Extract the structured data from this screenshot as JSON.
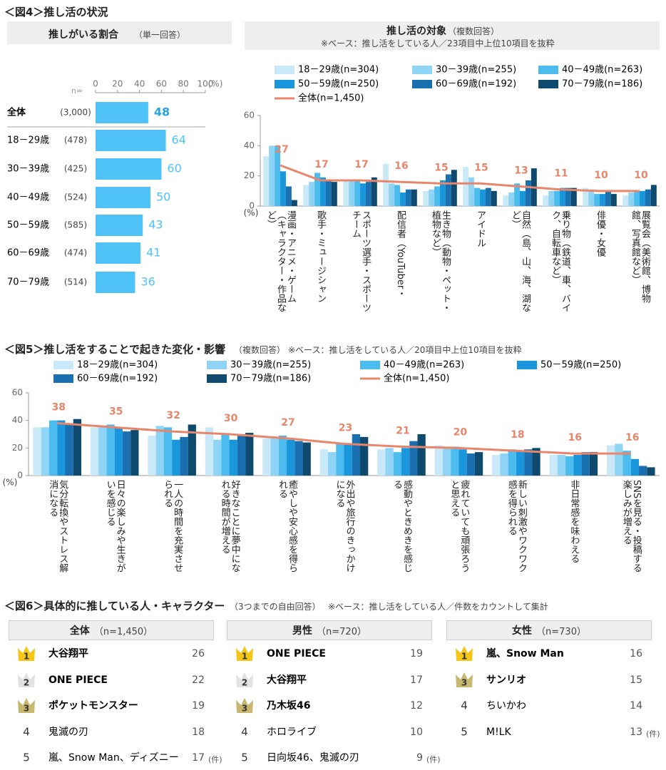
{
  "fig4_heading": "＜図4＞推し活の状況",
  "chart_data": [
    {
      "type": "hbar",
      "title": "推しがいる割合",
      "subtitle": "（単一回答）",
      "categories": [
        "全体",
        "18－29歳",
        "30－39歳",
        "40－49歳",
        "50－59歳",
        "60－69歳",
        "70－79歳"
      ],
      "n_label": "n=",
      "n": [
        "(3,000)",
        "(478)",
        "(425)",
        "(524)",
        "(585)",
        "(474)",
        "(514)"
      ],
      "values": [
        48,
        64,
        60,
        50,
        43,
        41,
        36
      ],
      "color": "#4fc3f7",
      "xlim": [
        0,
        100
      ],
      "xticks": [
        0,
        20,
        40,
        60,
        80,
        100
      ],
      "x_unit": "(%)"
    },
    {
      "type": "bar_line",
      "title": "推し活の対象",
      "subtitle": "（複数回答）",
      "note": "※ベース：推し活をしている人／23項目中上位10項目を抜粋",
      "categories": [
        "漫画・アニメ・ゲーム（キャラクター・作品など）",
        "歌手・ミュージシャン",
        "スポーツ選手・スポーツチーム",
        "配信者（YouTuber・",
        "生き物（動物・ペット・植物など）",
        "アイドル",
        "自然（島、山、海、湖など）",
        "乗り物（鉄道、車、バイク、自転車など）",
        "俳優・女優",
        "展覧会（美術館、博物館、写真館など）"
      ],
      "series": [
        {
          "name": "18－29歳(n=304)",
          "color": "#c9e9f9",
          "kind": "bar",
          "values": [
            33,
            14,
            17,
            28,
            10,
            26,
            7,
            7,
            12,
            7
          ]
        },
        {
          "name": "30－39歳(n=255)",
          "color": "#8fd4f4",
          "kind": "bar",
          "values": [
            40,
            16,
            17,
            15,
            11,
            19,
            9,
            10,
            11,
            9
          ]
        },
        {
          "name": "40－49歳(n=263)",
          "color": "#4cbcef",
          "kind": "bar",
          "values": [
            40,
            22,
            17,
            14,
            13,
            12,
            15,
            10,
            8,
            10
          ]
        },
        {
          "name": "50－59歳(n=250)",
          "color": "#1a96dc",
          "kind": "bar",
          "values": [
            23,
            19,
            15,
            9,
            17,
            11,
            10,
            12,
            8,
            10
          ]
        },
        {
          "name": "60－69歳(n=192)",
          "color": "#1a6fb0",
          "kind": "bar",
          "values": [
            13,
            17,
            16,
            11,
            21,
            12,
            17,
            12,
            10,
            11
          ]
        },
        {
          "name": "70－79歳(n=186)",
          "color": "#0d4a6e",
          "kind": "bar",
          "values": [
            4,
            16,
            19,
            11,
            24,
            10,
            25,
            12,
            8,
            14
          ]
        },
        {
          "name": "全体(n=1,450)",
          "color": "#e8856a",
          "kind": "line",
          "values": [
            27,
            17,
            17,
            16,
            15,
            15,
            13,
            11,
            10,
            10
          ]
        }
      ],
      "ylim": [
        0,
        60
      ],
      "yticks": [
        0,
        20,
        40,
        60
      ],
      "y_unit": "(%)"
    },
    {
      "type": "bar_line",
      "title": "＜図5＞推し活をすることで起きた変化・影響",
      "subtitle": "（複数回答）",
      "note": "※ベース：推し活をしている人／20項目中上位10項目を抜粋",
      "categories": [
        "気分転換やストレス解消になる",
        "日々の楽しみや生きがいを感じる",
        "一人の時間を充実させられる",
        "好きなことに夢中になれる時間が増える",
        "癒やしや安心感を得られる",
        "外出や旅行のきっかけになる",
        "感動やときめきを感じる",
        "疲れていても頑張ろうと思える",
        "新しい刺激やワクワク感を得られる",
        "非日常感を味わえる",
        "SNSを見る・投稿する楽しみが増える"
      ],
      "series": [
        {
          "name": "18－29歳(n=304)",
          "color": "#c9e9f9",
          "kind": "bar",
          "values": [
            35,
            35,
            29,
            35,
            27,
            19,
            19,
            22,
            15,
            15,
            22
          ]
        },
        {
          "name": "30－39歳(n=255)",
          "color": "#8fd4f4",
          "kind": "bar",
          "values": [
            35,
            35,
            36,
            26,
            27,
            17,
            20,
            21,
            16,
            15,
            23
          ]
        },
        {
          "name": "40－49歳(n=263)",
          "color": "#4cbcef",
          "kind": "bar",
          "values": [
            40,
            37,
            35,
            30,
            29,
            23,
            17,
            21,
            19,
            14,
            18
          ]
        },
        {
          "name": "50－59歳(n=250)",
          "color": "#1a96dc",
          "kind": "bar",
          "values": [
            40,
            35,
            26,
            26,
            26,
            23,
            20,
            19,
            18,
            15,
            12
          ]
        },
        {
          "name": "60－69歳(n=192)",
          "color": "#1a6fb0",
          "kind": "bar",
          "values": [
            38,
            32,
            28,
            30,
            25,
            30,
            25,
            16,
            19,
            17,
            7
          ]
        },
        {
          "name": "70－79歳(n=186)",
          "color": "#0d4a6e",
          "kind": "bar",
          "values": [
            41,
            33,
            37,
            31,
            24,
            28,
            30,
            17,
            20,
            17,
            6
          ]
        },
        {
          "name": "全体(n=1,450)",
          "color": "#e8856a",
          "kind": "line",
          "values": [
            38,
            35,
            32,
            30,
            27,
            23,
            21,
            20,
            18,
            16,
            16
          ]
        }
      ],
      "ylim": [
        0,
        60
      ],
      "yticks": [
        0,
        20,
        40,
        60
      ],
      "y_unit": "(%)"
    }
  ],
  "ranking": {
    "title": "＜図6＞具体的に推している人・キャラクター",
    "subtitle": "（3つまでの自由回答）",
    "note": "※ベース：推し活をしている人／件数をカウントして集計",
    "panels": [
      {
        "name": "全体",
        "n": "（n=1,450）",
        "unit": "(件)",
        "items": [
          {
            "rank": 1,
            "label": "大谷翔平",
            "count": 26
          },
          {
            "rank": 2,
            "label": "ONE PIECE",
            "count": 22
          },
          {
            "rank": 3,
            "label": "ポケットモンスター",
            "count": 19
          },
          {
            "rank": 4,
            "label": "鬼滅の刃",
            "count": 18
          },
          {
            "rank": 5,
            "label": "嵐、Snow Man、ディズニー",
            "count": 17
          }
        ]
      },
      {
        "name": "男性",
        "n": "（n=720）",
        "unit": "(件)",
        "items": [
          {
            "rank": 1,
            "label": "ONE PIECE",
            "count": 19
          },
          {
            "rank": 2,
            "label": "大谷翔平",
            "count": 17
          },
          {
            "rank": 3,
            "label": "乃木坂46",
            "count": 12
          },
          {
            "rank": 4,
            "label": "ホロライブ",
            "count": 10
          },
          {
            "rank": 5,
            "label": "日向坂46、鬼滅の刃",
            "count": 9
          }
        ]
      },
      {
        "name": "女性",
        "n": "（n=730）",
        "unit": "(件)",
        "items": [
          {
            "rank": 1,
            "label": "嵐、Snow Man",
            "count": 16
          },
          {
            "rank": 3,
            "label": "サンリオ",
            "count": 15
          },
          {
            "rank": 4,
            "label": "ちいかわ",
            "count": 14
          },
          {
            "rank": 5,
            "label": "M!LK",
            "count": 13
          }
        ]
      }
    ]
  }
}
